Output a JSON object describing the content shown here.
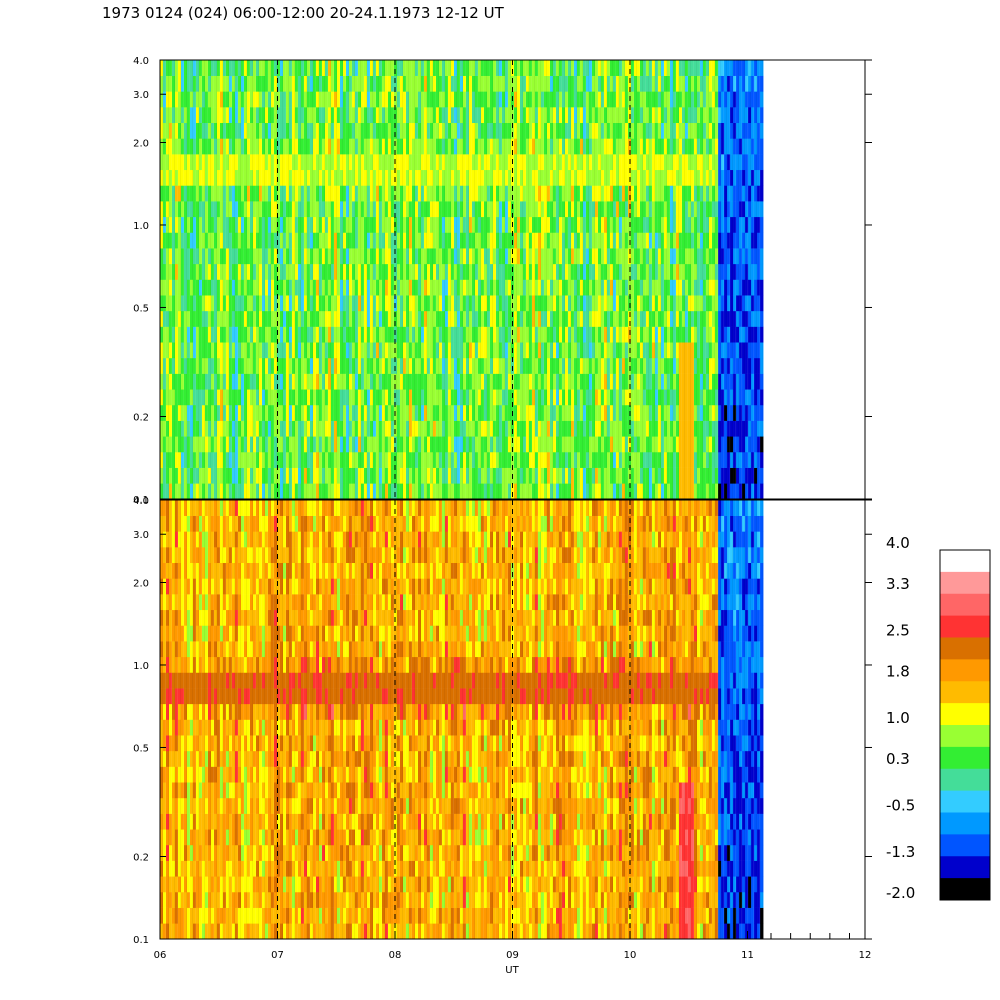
{
  "title": "1973 0124 (024) 06:00-12:00 20-24.1.1973  12-12 UT",
  "chart_data": {
    "type": "heatmap",
    "xlabel": "UT",
    "x_ticks": [
      "06",
      "07",
      "08",
      "09",
      "10",
      "11",
      "12"
    ],
    "xlim": [
      6,
      12
    ],
    "data_end_ut": 11.13,
    "gap_start_ut": 10.75,
    "y_scale": "log",
    "ylim": [
      0.1,
      4.0
    ],
    "y_ticks": [
      "0.1",
      "0.2",
      "0.5",
      "1.0",
      "2.0",
      "3.0",
      "4.0"
    ],
    "panels": [
      {
        "name": "upper",
        "typical_level": 0.6,
        "band_frequency": 1.6,
        "band_level": 1.0,
        "spike": {
          "ut": 10.46,
          "freq_range": [
            0.1,
            0.35
          ],
          "level": 1.6
        }
      },
      {
        "name": "lower",
        "typical_level": 1.7,
        "band_frequency": 0.8,
        "band_level": 2.4,
        "spike": {
          "ut": 10.46,
          "freq_range": [
            0.1,
            0.35
          ],
          "level": 2.8
        }
      }
    ],
    "colorbar": {
      "labels": [
        "4.0",
        "3.3",
        "2.5",
        "1.8",
        "1.0",
        "0.3",
        "-0.5",
        "-1.3",
        "-2.0"
      ],
      "min": -2.0,
      "max": 4.0,
      "colors": [
        "#ffffff",
        "#ff9999",
        "#ff6666",
        "#ff3333",
        "#d97000",
        "#ff9900",
        "#ffbb00",
        "#ffff00",
        "#99ff33",
        "#33ee33",
        "#44dd99",
        "#33ccff",
        "#0099ff",
        "#0055ff",
        "#0000cc",
        "#000000"
      ]
    }
  }
}
